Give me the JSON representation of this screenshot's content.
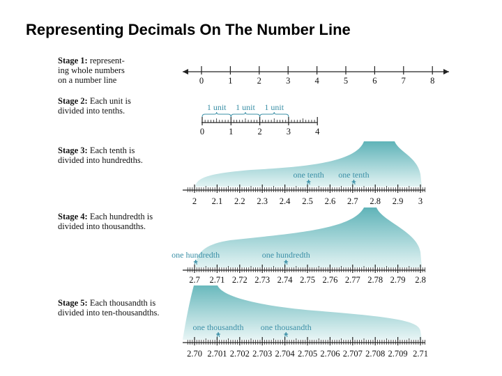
{
  "title": "Representing Decimals On The Number Line",
  "stages": [
    {
      "heading": "Stage 1:",
      "lines": [
        "represent-",
        "ing whole numbers",
        "on a number line"
      ]
    },
    {
      "heading": "Stage 2:",
      "lines": [
        "Each unit is",
        "divided into tenths."
      ]
    },
    {
      "heading": "Stage 3:",
      "lines": [
        "Each tenth is",
        "divided into hundredths."
      ]
    },
    {
      "heading": "Stage 4:",
      "lines": [
        "Each hundredth is",
        "divided into thousandths."
      ]
    },
    {
      "heading": "Stage 5:",
      "lines": [
        "Each thousandth is",
        "divided into ten-thousandths."
      ]
    }
  ],
  "lines": [
    {
      "labels": [
        "0",
        "1",
        "2",
        "3",
        "4",
        "5",
        "6",
        "7",
        "8"
      ]
    },
    {
      "labels": [
        "0",
        "1",
        "2",
        "3",
        "4"
      ],
      "brace_label": "1 unit"
    },
    {
      "labels": [
        "2",
        "2.1",
        "2.2",
        "2.3",
        "2.4",
        "2.5",
        "2.6",
        "2.7",
        "2.8",
        "2.9",
        "3"
      ],
      "brace_label": "one tenth"
    },
    {
      "labels": [
        "2.7",
        "2.71",
        "2.72",
        "2.73",
        "2.74",
        "2.75",
        "2.76",
        "2.77",
        "2.78",
        "2.79",
        "2.8"
      ],
      "brace_label": "one hundredth"
    },
    {
      "labels": [
        "2.70",
        "2.701",
        "2.702",
        "2.703",
        "2.704",
        "2.705",
        "2.706",
        "2.707",
        "2.708",
        "2.709",
        "2.71"
      ],
      "brace_label": "one thousandth"
    }
  ],
  "colors": {
    "fill": "#7cc3c8",
    "line": "#222222",
    "label": "#3a8fa6"
  }
}
